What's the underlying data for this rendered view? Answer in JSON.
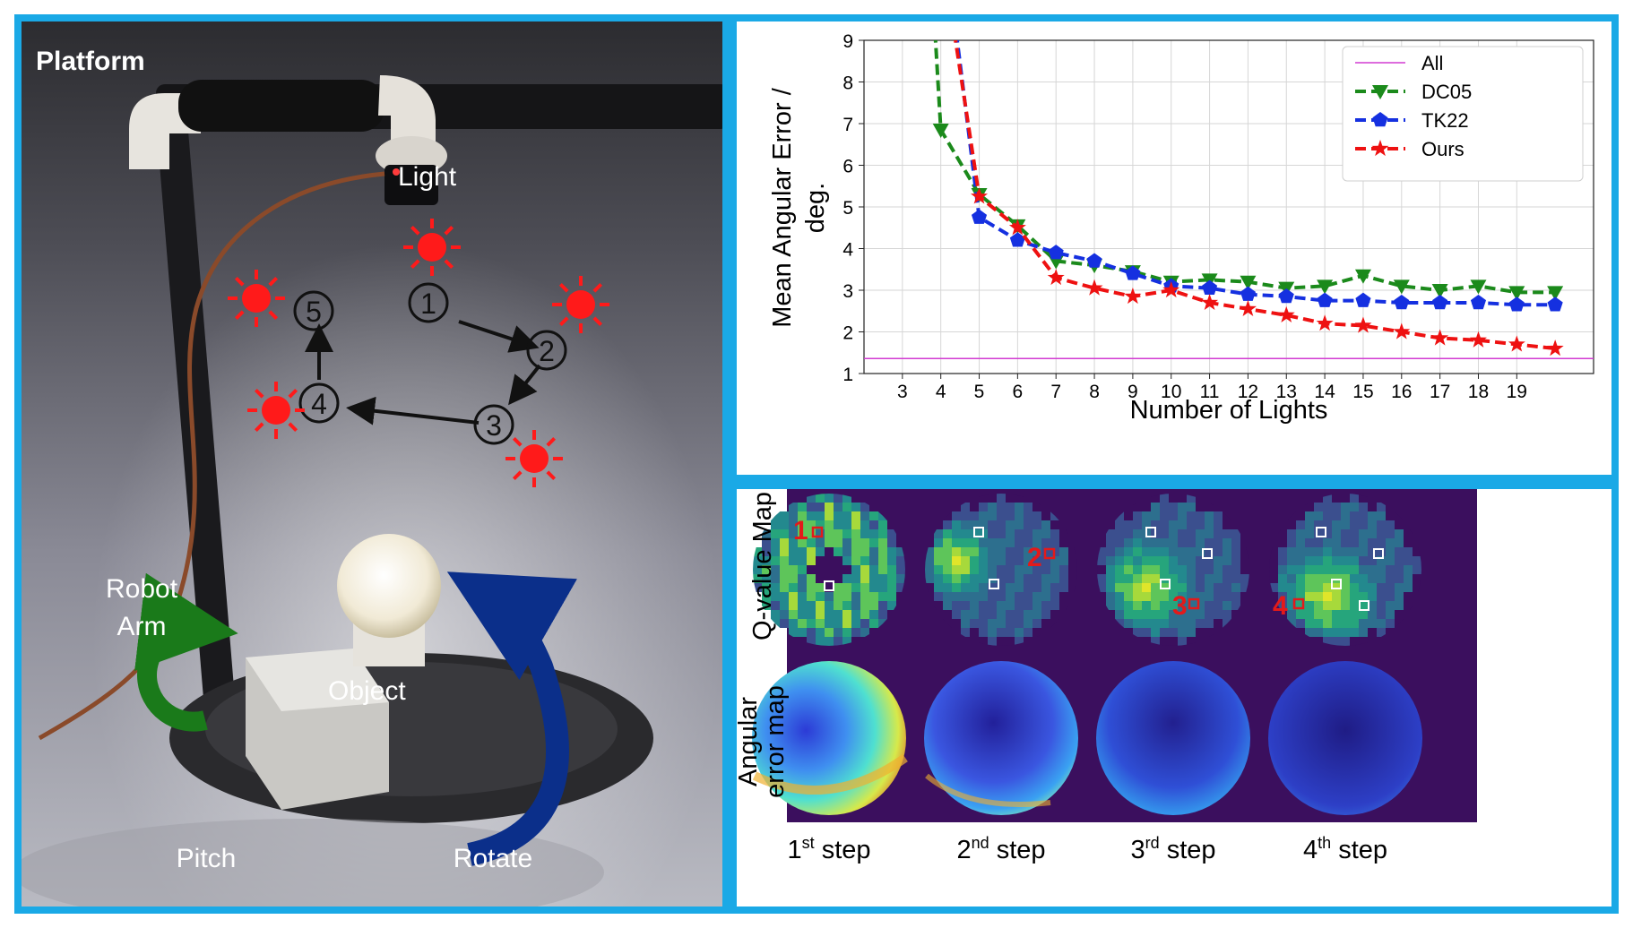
{
  "platform": {
    "title": "Platform",
    "labels": {
      "light": "Light",
      "object": "Object",
      "robot_arm_line1": "Robot",
      "robot_arm_line2": "Arm",
      "pitch": "Pitch",
      "rotate": "Rotate"
    },
    "steps": [
      "1",
      "2",
      "3",
      "4",
      "5"
    ],
    "colors": {
      "sun": "#ff1a1a",
      "pitch_arrow": "#1a7a1a",
      "rotate_arrow": "#0b2f8a"
    }
  },
  "chart_data": {
    "type": "line",
    "xlabel": "Number of Lights",
    "ylabel_line1": "Mean Angular Error /",
    "ylabel_line2": "deg.",
    "xlim": [
      2,
      21
    ],
    "ylim": [
      1,
      9
    ],
    "xticks": [
      3,
      4,
      5,
      6,
      7,
      8,
      9,
      10,
      11,
      12,
      13,
      14,
      15,
      16,
      17,
      18,
      19
    ],
    "yticks": [
      1,
      2,
      3,
      4,
      5,
      6,
      7,
      8,
      9
    ],
    "grid": true,
    "legend_position": "top-right",
    "series": [
      {
        "name": "All",
        "color": "#d23bd2",
        "style": "solid",
        "marker": "none",
        "x": [
          2,
          21
        ],
        "y": [
          1.36,
          1.36
        ]
      },
      {
        "name": "DC05",
        "color": "#1b8a1b",
        "style": "dashed",
        "marker": "triangle-down",
        "x": [
          3.85,
          4,
          5,
          6,
          7,
          8,
          9,
          10,
          11,
          12,
          13,
          14,
          15,
          16,
          17,
          18,
          19,
          20
        ],
        "y": [
          9.2,
          6.85,
          5.3,
          4.55,
          3.7,
          3.6,
          3.45,
          3.2,
          3.25,
          3.2,
          3.05,
          3.1,
          3.35,
          3.1,
          3.0,
          3.1,
          2.95,
          2.95
        ]
      },
      {
        "name": "TK22",
        "color": "#1530e0",
        "style": "dashed",
        "marker": "pentagon",
        "x": [
          4.4,
          5,
          6,
          7,
          8,
          9,
          10,
          11,
          12,
          13,
          14,
          15,
          16,
          17,
          18,
          19,
          20
        ],
        "y": [
          9.2,
          4.75,
          4.2,
          3.9,
          3.7,
          3.4,
          3.1,
          3.05,
          2.9,
          2.85,
          2.75,
          2.75,
          2.7,
          2.7,
          2.7,
          2.65,
          2.65
        ]
      },
      {
        "name": "Ours",
        "color": "#ee1111",
        "style": "dashed",
        "marker": "star",
        "x": [
          4.35,
          5,
          6,
          7,
          8,
          9,
          10,
          11,
          12,
          13,
          14,
          15,
          16,
          17,
          18,
          19,
          20
        ],
        "y": [
          9.2,
          5.25,
          4.5,
          3.3,
          3.05,
          2.85,
          3.0,
          2.7,
          2.55,
          2.4,
          2.2,
          2.15,
          2.0,
          1.85,
          1.8,
          1.7,
          1.6
        ]
      }
    ]
  },
  "maps": {
    "row_label_q": "Q-value Map",
    "row_label_err_line1": "Angular",
    "row_label_err_line2": "error map",
    "step_markers": [
      "1",
      "2",
      "3",
      "4"
    ],
    "steps": [
      {
        "num": "1",
        "sup": "st",
        "word": " step"
      },
      {
        "num": "2",
        "sup": "nd",
        "word": " step"
      },
      {
        "num": "3",
        "sup": "rd",
        "word": " step"
      },
      {
        "num": "4",
        "sup": "th",
        "word": " step"
      }
    ]
  }
}
